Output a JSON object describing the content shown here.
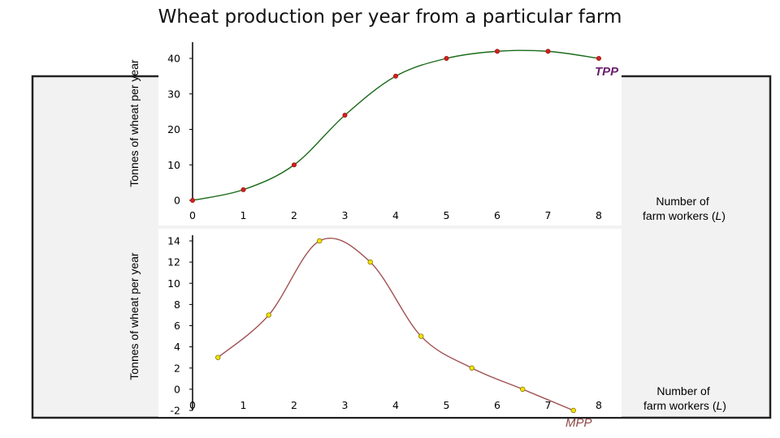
{
  "title": "Wheat production per year from a particular farm",
  "colors": {
    "tpp_line": "#1a6b1a",
    "tpp_point": "#d42020",
    "mpp_line": "#a05050",
    "mpp_point": "#f2e200",
    "tpp_label": "#6b1f6b",
    "mpp_label": "#8c4848",
    "frame": "#222222",
    "panel": "#f2f2f2"
  },
  "chart_data": [
    {
      "type": "line",
      "title": "",
      "ylabel": "Tonnes of wheat per year",
      "xlabel": "Number of farm workers (L)",
      "xlabel_lines": [
        "Number of",
        "farm workers (",
        "L",
        ")"
      ],
      "xlim": [
        0,
        8
      ],
      "ylim": [
        0,
        40
      ],
      "xticks": [
        0,
        1,
        2,
        3,
        4,
        5,
        6,
        7,
        8
      ],
      "yticks": [
        0,
        10,
        20,
        30,
        40
      ],
      "series": [
        {
          "name": "TPP",
          "x": [
            0,
            1,
            2,
            3,
            4,
            5,
            6,
            7,
            8
          ],
          "values": [
            0,
            3,
            10,
            24,
            35,
            40,
            42,
            42,
            40
          ]
        }
      ],
      "grid": false
    },
    {
      "type": "line",
      "title": "",
      "ylabel": "Tonnes of wheat per year",
      "xlabel": "Number of farm workers (L)",
      "xlabel_lines": [
        "Number of",
        "farm workers (",
        "L",
        ")"
      ],
      "xlim": [
        0,
        8
      ],
      "ylim": [
        -2,
        14
      ],
      "xticks": [
        0,
        1,
        2,
        3,
        4,
        5,
        6,
        7,
        8
      ],
      "yticks": [
        -2,
        0,
        2,
        4,
        6,
        8,
        10,
        12,
        14
      ],
      "series": [
        {
          "name": "MPP",
          "x": [
            0.5,
            1.5,
            2.5,
            3.5,
            4.5,
            5.5,
            6.5,
            7.5
          ],
          "values": [
            3,
            7,
            14,
            12,
            5,
            2,
            0,
            -2
          ]
        }
      ],
      "grid": false
    }
  ]
}
